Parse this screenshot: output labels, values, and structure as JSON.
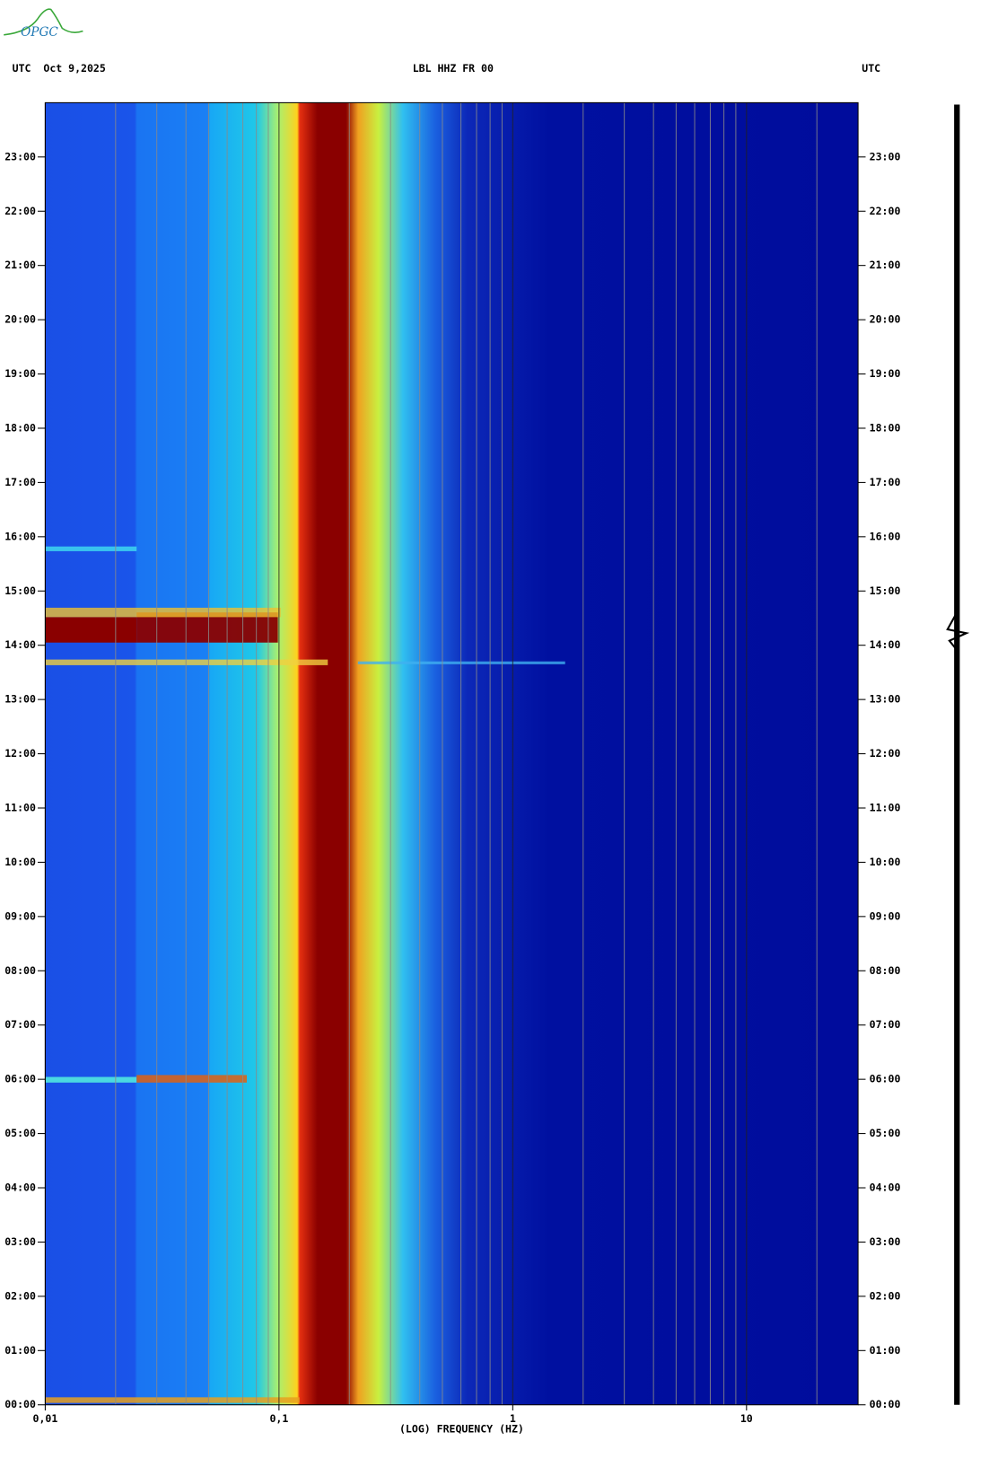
{
  "logo": "OPGC",
  "chart_data": {
    "type": "spectrogram",
    "title": "LBL HHZ FR 00",
    "date_label": "UTC  Oct 9,2025",
    "right_label": "UTC",
    "x_label": "(LOG) FREQUENCY (HZ)",
    "xscale": "log",
    "xlim": [
      0.01,
      30
    ],
    "xticks": [
      {
        "value": 0.01,
        "label": "0,01"
      },
      {
        "value": 0.1,
        "label": "0,1"
      },
      1,
      10
    ],
    "xgrid": [
      0.02,
      0.03,
      0.04,
      0.05,
      0.06,
      0.07,
      0.08,
      0.09,
      0.2,
      0.3,
      0.4,
      0.5,
      0.6,
      0.7,
      0.8,
      0.9,
      2,
      3,
      4,
      5,
      6,
      7,
      8,
      9,
      20
    ],
    "ylim": [
      0,
      24
    ],
    "yticks": [
      {
        "value": 0,
        "label": "00:00"
      },
      {
        "value": 1,
        "label": "01:00"
      },
      {
        "value": 2,
        "label": "02:00"
      },
      {
        "value": 3,
        "label": "03:00"
      },
      {
        "value": 4,
        "label": "04:00"
      },
      {
        "value": 5,
        "label": "05:00"
      },
      {
        "value": 6,
        "label": "06:00"
      },
      {
        "value": 7,
        "label": "07:00"
      },
      {
        "value": 8,
        "label": "08:00"
      },
      {
        "value": 9,
        "label": "09:00"
      },
      {
        "value": 10,
        "label": "10:00"
      },
      {
        "value": 11,
        "label": "11:00"
      },
      {
        "value": 12,
        "label": "12:00"
      },
      {
        "value": 13,
        "label": "13:00"
      },
      {
        "value": 14,
        "label": "14:00"
      },
      {
        "value": 15,
        "label": "15:00"
      },
      {
        "value": 16,
        "label": "16:00"
      },
      {
        "value": 17,
        "label": "17:00"
      },
      {
        "value": 18,
        "label": "18:00"
      },
      {
        "value": 19,
        "label": "19:00"
      },
      {
        "value": 20,
        "label": "20:00"
      },
      {
        "value": 21,
        "label": "21:00"
      },
      {
        "value": 22,
        "label": "22:00"
      },
      {
        "value": 23,
        "label": "23:00"
      }
    ]
  }
}
